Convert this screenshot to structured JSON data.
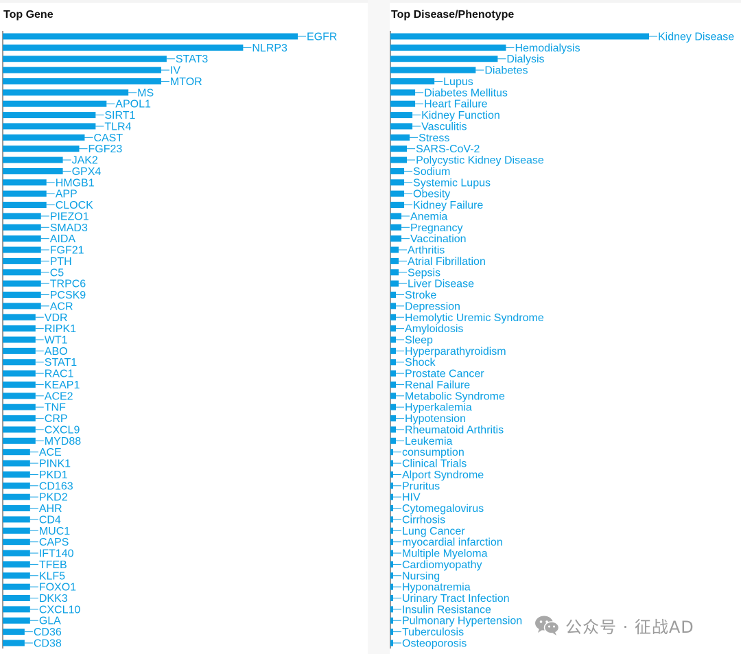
{
  "colors": {
    "bar": "#0A9FE3",
    "label": "#0A9FE3",
    "axis": "#333333",
    "title": "#111111",
    "watermark": "#9c9c9c"
  },
  "watermark": {
    "icon": "wechat-icon",
    "text": "公众号 · 征战AD"
  },
  "chart_data": [
    {
      "type": "bar",
      "orientation": "horizontal",
      "title": "Top Gene",
      "xlabel": "",
      "ylabel": "",
      "grid": false,
      "legend": "none",
      "categories": [
        "EGFR",
        "NLRP3",
        "STAT3",
        "IV",
        "MTOR",
        "MS",
        "APOL1",
        "SIRT1",
        "TLR4",
        "CAST",
        "FGF23",
        "JAK2",
        "GPX4",
        "HMGB1",
        "APP",
        "CLOCK",
        "PIEZO1",
        "SMAD3",
        "AIDA",
        "FGF21",
        "PTH",
        "C5",
        "TRPC6",
        "PCSK9",
        "ACR",
        "VDR",
        "RIPK1",
        "WT1",
        "ABO",
        "STAT1",
        "RAC1",
        "KEAP1",
        "ACE2",
        "TNF",
        "CRP",
        "CXCL9",
        "MYD88",
        "ACE",
        "PINK1",
        "PKD1",
        "CD163",
        "PKD2",
        "AHR",
        "CD4",
        "MUC1",
        "CAPS",
        "IFT140",
        "TFEB",
        "KLF5",
        "FOXO1",
        "DKK3",
        "CXCL10",
        "GLA",
        "CD36",
        "CD38"
      ],
      "values": [
        54,
        44,
        30,
        29,
        29,
        23,
        19,
        17,
        17,
        15,
        14,
        11,
        11,
        8,
        8,
        8,
        7,
        7,
        7,
        7,
        7,
        7,
        7,
        7,
        7,
        6,
        6,
        6,
        6,
        6,
        6,
        6,
        6,
        6,
        6,
        6,
        6,
        5,
        5,
        5,
        5,
        5,
        5,
        5,
        5,
        5,
        5,
        5,
        5,
        5,
        5,
        5,
        5,
        4,
        4
      ],
      "xlim": [
        0,
        54
      ]
    },
    {
      "type": "bar",
      "orientation": "horizontal",
      "title": "Top Disease/Phenotype",
      "xlabel": "",
      "ylabel": "",
      "grid": false,
      "legend": "none",
      "categories": [
        "Kidney Disease",
        "Hemodialysis",
        "Dialysis",
        "Diabetes",
        "Lupus",
        "Diabetes Mellitus",
        "Heart Failure",
        "Kidney Function",
        "Vasculitis",
        "Stress",
        "SARS-CoV-2",
        "Polycystic Kidney Disease",
        "Sodium",
        "Systemic Lupus",
        "Obesity",
        "Kidney Failure",
        "Anemia",
        "Pregnancy",
        "Vaccination",
        "Arthritis",
        "Atrial Fibrillation",
        "Sepsis",
        "Liver Disease",
        "Stroke",
        "Depression",
        "Hemolytic Uremic Syndrome",
        "Amyloidosis",
        "Sleep",
        "Hyperparathyroidism",
        "Shock",
        "Prostate Cancer",
        "Renal Failure",
        "Metabolic Syndrome",
        "Hyperkalemia",
        "Hypotension",
        "Rheumatoid Arthritis",
        "Leukemia",
        "consumption",
        "Clinical Trials",
        "Alport Syndrome",
        "Pruritus",
        "HIV",
        "Cytomegalovirus",
        "Cirrhosis",
        "Lung Cancer",
        "myocardial infarction",
        "Multiple Myeloma",
        "Cardiomyopathy",
        "Nursing",
        "Hyponatremia",
        "Urinary Tract Infection",
        "Insulin Resistance",
        "Pulmonary Hypertension",
        "Tuberculosis",
        "Osteoporosis"
      ],
      "values": [
        94,
        42,
        39,
        31,
        16,
        9,
        9,
        8,
        8,
        7,
        6,
        6,
        5,
        5,
        5,
        5,
        4,
        4,
        4,
        3,
        3,
        3,
        3,
        2,
        2,
        2,
        2,
        2,
        2,
        2,
        2,
        2,
        2,
        2,
        2,
        2,
        2,
        1,
        1,
        1,
        1,
        1,
        1,
        1,
        1,
        1,
        1,
        1,
        1,
        1,
        1,
        1,
        1,
        1,
        1
      ],
      "xlim": [
        0,
        94
      ]
    }
  ]
}
